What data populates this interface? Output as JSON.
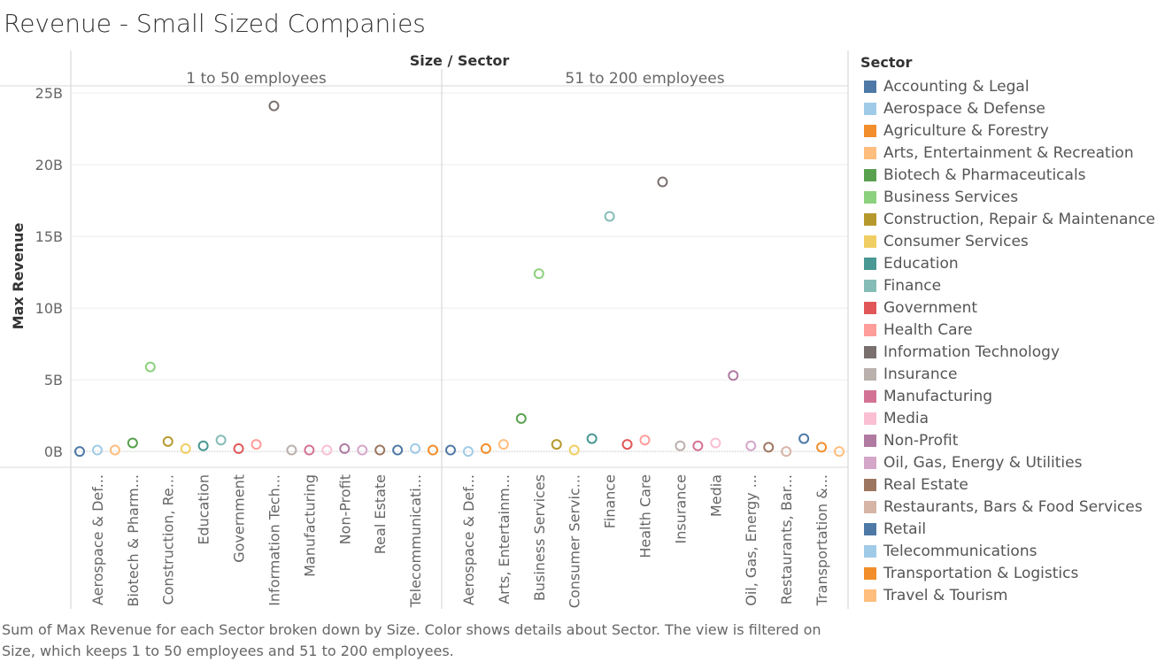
{
  "title": "Revenue - Small Sized Companies",
  "caption": "Sum of Max Revenue for each Sector broken down by Size.  Color shows details about Sector. The view is filtered on Size, which keeps 1 to 50 employees and 51 to 200 employees.",
  "legend": {
    "title": "Sector",
    "items": [
      {
        "label": "Accounting & Legal",
        "color": "#4e79a7"
      },
      {
        "label": "Aerospace & Defense",
        "color": "#a0cbe8"
      },
      {
        "label": "Agriculture & Forestry",
        "color": "#f28e2b"
      },
      {
        "label": "Arts, Entertainment & Recreation",
        "color": "#ffbe7d"
      },
      {
        "label": "Biotech & Pharmaceuticals",
        "color": "#59a14f"
      },
      {
        "label": "Business Services",
        "color": "#8cd17d"
      },
      {
        "label": "Construction, Repair & Maintenance",
        "color": "#b6992d"
      },
      {
        "label": "Consumer Services",
        "color": "#f1ce63"
      },
      {
        "label": "Education",
        "color": "#499894"
      },
      {
        "label": "Finance",
        "color": "#86bcb6"
      },
      {
        "label": "Government",
        "color": "#e15759"
      },
      {
        "label": "Health Care",
        "color": "#ff9d9a"
      },
      {
        "label": "Information Technology",
        "color": "#79706e"
      },
      {
        "label": "Insurance",
        "color": "#bab0ac"
      },
      {
        "label": "Manufacturing",
        "color": "#d37295"
      },
      {
        "label": "Media",
        "color": "#fabfd2"
      },
      {
        "label": "Non-Profit",
        "color": "#b07aa1"
      },
      {
        "label": "Oil, Gas, Energy & Utilities",
        "color": "#d4a6c8"
      },
      {
        "label": "Real Estate",
        "color": "#9d7660"
      },
      {
        "label": "Restaurants, Bars & Food Services",
        "color": "#d7b5a6"
      },
      {
        "label": "Retail",
        "color": "#4e79a7"
      },
      {
        "label": "Telecommunications",
        "color": "#a0cbe8"
      },
      {
        "label": "Transportation & Logistics",
        "color": "#f28e2b"
      },
      {
        "label": "Travel & Tourism",
        "color": "#ffbe7d"
      }
    ]
  },
  "chart_data": {
    "type": "scatter",
    "header": "Size / Sector",
    "ylabel": "Max Revenue",
    "ylim": [
      -1.1,
      25.5
    ],
    "yticks": [
      0,
      5,
      10,
      15,
      20,
      25
    ],
    "ytick_labels": [
      "0B",
      "5B",
      "10B",
      "15B",
      "20B",
      "25B"
    ],
    "grid": true,
    "legend_position": "right",
    "panels": [
      {
        "name": "1 to 50 employees",
        "tick_labels": [
          "Aerospace & Def...",
          "Biotech & Pharm...",
          "Construction, Re...",
          "Education",
          "Government",
          "Information Tech...",
          "Manufacturing",
          "Non-Profit",
          "Real Estate",
          "Telecommunicati..."
        ],
        "points": [
          {
            "sector": "Accounting & Legal",
            "value": 0.0
          },
          {
            "sector": "Aerospace & Defense",
            "value": 0.1
          },
          {
            "sector": "Arts, Entertainment & Recreation",
            "value": 0.1
          },
          {
            "sector": "Biotech & Pharmaceuticals",
            "value": 0.6
          },
          {
            "sector": "Business Services",
            "value": 5.9
          },
          {
            "sector": "Construction, Repair & Maintenance",
            "value": 0.7
          },
          {
            "sector": "Consumer Services",
            "value": 0.2
          },
          {
            "sector": "Education",
            "value": 0.4
          },
          {
            "sector": "Finance",
            "value": 0.8
          },
          {
            "sector": "Government",
            "value": 0.2
          },
          {
            "sector": "Health Care",
            "value": 0.5
          },
          {
            "sector": "Information Technology",
            "value": 24.1
          },
          {
            "sector": "Insurance",
            "value": 0.1
          },
          {
            "sector": "Manufacturing",
            "value": 0.1
          },
          {
            "sector": "Media",
            "value": 0.1
          },
          {
            "sector": "Non-Profit",
            "value": 0.2
          },
          {
            "sector": "Oil, Gas, Energy & Utilities",
            "value": 0.1
          },
          {
            "sector": "Real Estate",
            "value": 0.1
          },
          {
            "sector": "Retail",
            "value": 0.1
          },
          {
            "sector": "Telecommunications",
            "value": 0.2
          },
          {
            "sector": "Transportation & Logistics",
            "value": 0.1
          }
        ]
      },
      {
        "name": "51 to 200 employees",
        "tick_labels": [
          "Aerospace & Def...",
          "Arts, Entertainm...",
          "Business Services",
          "Consumer Servic...",
          "Finance",
          "Health Care",
          "Insurance",
          "Media",
          "Oil, Gas, Energy ...",
          "Restaurants, Bar...",
          "Transportation &..."
        ],
        "points": [
          {
            "sector": "Accounting & Legal",
            "value": 0.1
          },
          {
            "sector": "Aerospace & Defense",
            "value": 0.0
          },
          {
            "sector": "Agriculture & Forestry",
            "value": 0.2
          },
          {
            "sector": "Arts, Entertainment & Recreation",
            "value": 0.5
          },
          {
            "sector": "Biotech & Pharmaceuticals",
            "value": 2.3
          },
          {
            "sector": "Business Services",
            "value": 12.4
          },
          {
            "sector": "Construction, Repair & Maintenance",
            "value": 0.5
          },
          {
            "sector": "Consumer Services",
            "value": 0.1
          },
          {
            "sector": "Education",
            "value": 0.9
          },
          {
            "sector": "Finance",
            "value": 16.4
          },
          {
            "sector": "Government",
            "value": 0.5
          },
          {
            "sector": "Health Care",
            "value": 0.8
          },
          {
            "sector": "Information Technology",
            "value": 18.8
          },
          {
            "sector": "Insurance",
            "value": 0.4
          },
          {
            "sector": "Manufacturing",
            "value": 0.4
          },
          {
            "sector": "Media",
            "value": 0.6
          },
          {
            "sector": "Non-Profit",
            "value": 5.3
          },
          {
            "sector": "Oil, Gas, Energy & Utilities",
            "value": 0.4
          },
          {
            "sector": "Real Estate",
            "value": 0.3
          },
          {
            "sector": "Restaurants, Bars & Food Services",
            "value": 0.0
          },
          {
            "sector": "Retail",
            "value": 0.9
          },
          {
            "sector": "Transportation & Logistics",
            "value": 0.3
          },
          {
            "sector": "Travel & Tourism",
            "value": 0.0
          }
        ]
      }
    ]
  }
}
